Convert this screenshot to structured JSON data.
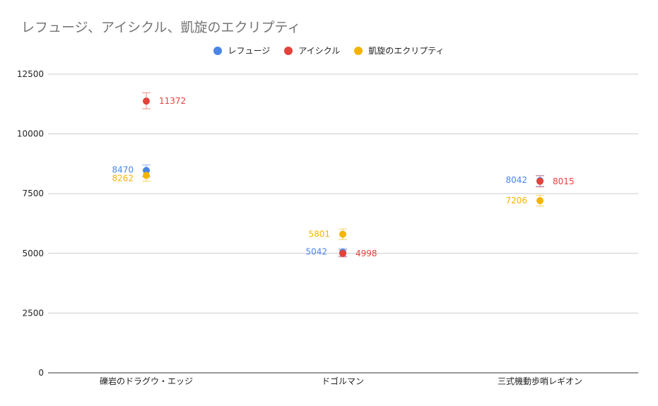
{
  "chart_data": {
    "type": "scatter",
    "title": "レフュージ、アイシクル、凱旋のエクリプティ",
    "categories": [
      "礫岩のドラグウ・エッジ",
      "ドゴルマン",
      "三式機動歩哨レギオン"
    ],
    "series": [
      {
        "name": "レフュージ",
        "color": "#4a86e8",
        "values": [
          8470,
          5042,
          8042
        ],
        "err_low": [
          8200,
          4880,
          7800
        ],
        "err_high": [
          8700,
          5200,
          8250
        ]
      },
      {
        "name": "アイシクル",
        "color": "#e2433b",
        "values": [
          11372,
          4998,
          8015
        ],
        "err_low": [
          11050,
          4850,
          7780
        ],
        "err_high": [
          11720,
          5150,
          8250
        ]
      },
      {
        "name": "凱旋のエクリプティ",
        "color": "#f4b400",
        "values": [
          8262,
          5801,
          7206
        ],
        "err_low": [
          8020,
          5580,
          6980
        ],
        "err_high": [
          8480,
          6020,
          7430
        ]
      }
    ],
    "ylim": [
      0,
      12500
    ],
    "yticks": [
      "0",
      "2500",
      "5000",
      "7500",
      "10000",
      "12500"
    ],
    "grid": true,
    "legend_position": "top"
  }
}
